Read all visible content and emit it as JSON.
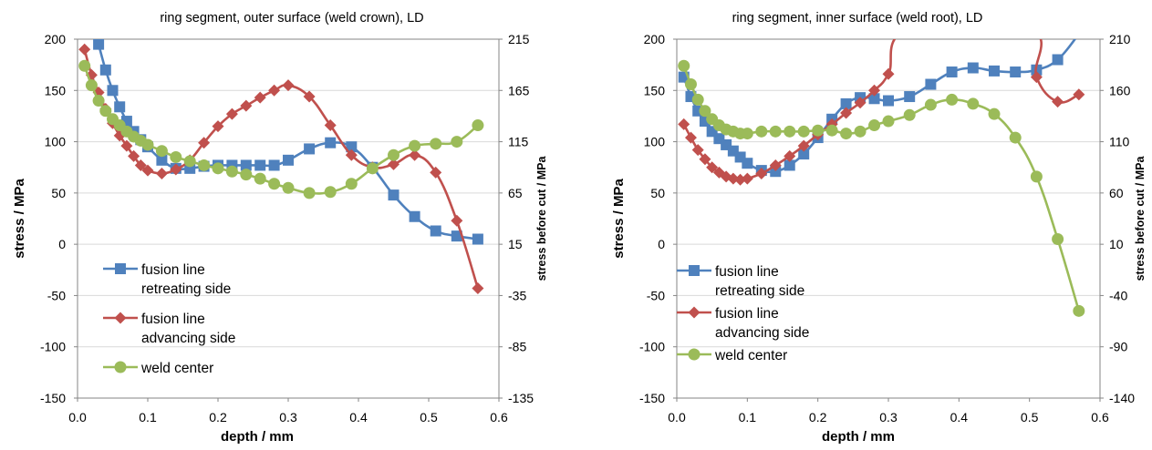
{
  "colors": {
    "retreating": "#4F81BD",
    "advancing": "#C0504D",
    "center": "#9BBB59",
    "grid": "#D9D9D9",
    "axis": "#868686"
  },
  "chart_data": [
    {
      "type": "line",
      "title": "ring segment, outer surface (weld crown), LD",
      "xlabel": "depth  / mm",
      "ylabel": "stress / MPa",
      "y2label": "stress before cut / MPa",
      "xlim": [
        0.0,
        0.6
      ],
      "ylim": [
        -150,
        200
      ],
      "y2lim": [
        -135,
        215
      ],
      "xticks": [
        "0.0",
        "0.1",
        "0.2",
        "0.3",
        "0.4",
        "0.5",
        "0.6"
      ],
      "yticks": [
        "200",
        "150",
        "100",
        "50",
        "0",
        "-50",
        "-100",
        "-150"
      ],
      "y2ticks": [
        "215",
        "165",
        "115",
        "65",
        "15",
        "-35",
        "-85",
        "-135"
      ],
      "grid": "horizontal",
      "legend_position": "bottom-left",
      "series": [
        {
          "name": "fusion line retreating side",
          "legend_lines": [
            "fusion line",
            "retreating side"
          ],
          "marker": "square",
          "points": [
            [
              0.03,
              195
            ],
            [
              0.04,
              170
            ],
            [
              0.05,
              150
            ],
            [
              0.06,
              134
            ],
            [
              0.07,
              120
            ],
            [
              0.08,
              110
            ],
            [
              0.09,
              102
            ],
            [
              0.1,
              95
            ],
            [
              0.12,
              82
            ],
            [
              0.14,
              74
            ],
            [
              0.16,
              74
            ],
            [
              0.18,
              76
            ],
            [
              0.2,
              77
            ],
            [
              0.22,
              77
            ],
            [
              0.24,
              77
            ],
            [
              0.26,
              77
            ],
            [
              0.28,
              77
            ],
            [
              0.3,
              82
            ],
            [
              0.33,
              93
            ],
            [
              0.36,
              99
            ],
            [
              0.39,
              95
            ],
            [
              0.42,
              75
            ],
            [
              0.45,
              48
            ],
            [
              0.48,
              27
            ],
            [
              0.51,
              13
            ],
            [
              0.54,
              8
            ],
            [
              0.57,
              5
            ]
          ]
        },
        {
          "name": "fusion line advancing side",
          "legend_lines": [
            "fusion line",
            "advancing side"
          ],
          "marker": "diamond",
          "points": [
            [
              0.01,
              190
            ],
            [
              0.02,
              165
            ],
            [
              0.03,
              148
            ],
            [
              0.04,
              132
            ],
            [
              0.05,
              118
            ],
            [
              0.06,
              106
            ],
            [
              0.07,
              96
            ],
            [
              0.08,
              86
            ],
            [
              0.09,
              77
            ],
            [
              0.1,
              72
            ],
            [
              0.12,
              69
            ],
            [
              0.14,
              73
            ],
            [
              0.16,
              82
            ],
            [
              0.18,
              99
            ],
            [
              0.2,
              115
            ],
            [
              0.22,
              127
            ],
            [
              0.24,
              135
            ],
            [
              0.26,
              143
            ],
            [
              0.28,
              150
            ],
            [
              0.3,
              155
            ],
            [
              0.33,
              144
            ],
            [
              0.36,
              116
            ],
            [
              0.39,
              87
            ],
            [
              0.42,
              75
            ],
            [
              0.45,
              78
            ],
            [
              0.48,
              87
            ],
            [
              0.51,
              70
            ],
            [
              0.54,
              23
            ],
            [
              0.57,
              -43
            ]
          ]
        },
        {
          "name": "weld center",
          "legend_lines": [
            "weld center"
          ],
          "marker": "circle",
          "points": [
            [
              0.01,
              174
            ],
            [
              0.02,
              155
            ],
            [
              0.03,
              140
            ],
            [
              0.04,
              130
            ],
            [
              0.05,
              122
            ],
            [
              0.06,
              116
            ],
            [
              0.07,
              110
            ],
            [
              0.08,
              105
            ],
            [
              0.09,
              101
            ],
            [
              0.1,
              97
            ],
            [
              0.12,
              91
            ],
            [
              0.14,
              85
            ],
            [
              0.16,
              81
            ],
            [
              0.18,
              77
            ],
            [
              0.2,
              74
            ],
            [
              0.22,
              71
            ],
            [
              0.24,
              68
            ],
            [
              0.26,
              64
            ],
            [
              0.28,
              59
            ],
            [
              0.3,
              55
            ],
            [
              0.33,
              50
            ],
            [
              0.36,
              51
            ],
            [
              0.39,
              59
            ],
            [
              0.42,
              74
            ],
            [
              0.45,
              87
            ],
            [
              0.48,
              96
            ],
            [
              0.51,
              98
            ],
            [
              0.54,
              100
            ],
            [
              0.57,
              116
            ]
          ]
        }
      ]
    },
    {
      "type": "line",
      "title": "ring segment, inner surface (weld  root), LD",
      "xlabel": "depth  / mm",
      "ylabel": "stress / MPa",
      "y2label": "stress before cut / MPa",
      "xlim": [
        0.0,
        0.6
      ],
      "ylim": [
        -150,
        200
      ],
      "y2lim": [
        -140,
        210
      ],
      "xticks": [
        "0.0",
        "0.1",
        "0.2",
        "0.3",
        "0.4",
        "0.5",
        "0.6"
      ],
      "yticks": [
        "200",
        "150",
        "100",
        "50",
        "0",
        "-50",
        "-100",
        "-150"
      ],
      "y2ticks": [
        "210",
        "160",
        "110",
        "60",
        "10",
        "-40",
        "-90",
        "-140"
      ],
      "grid": "horizontal",
      "legend_position": "bottom-left",
      "series": [
        {
          "name": "fusion line retreating side",
          "legend_lines": [
            "fusion line",
            "retreating side"
          ],
          "marker": "square",
          "points": [
            [
              0.01,
              163
            ],
            [
              0.02,
              144
            ],
            [
              0.03,
              130
            ],
            [
              0.04,
              120
            ],
            [
              0.05,
              110
            ],
            [
              0.06,
              103
            ],
            [
              0.07,
              97
            ],
            [
              0.08,
              91
            ],
            [
              0.09,
              85
            ],
            [
              0.1,
              79
            ],
            [
              0.12,
              72
            ],
            [
              0.14,
              71
            ],
            [
              0.16,
              77
            ],
            [
              0.18,
              88
            ],
            [
              0.2,
              104
            ],
            [
              0.22,
              122
            ],
            [
              0.24,
              137
            ],
            [
              0.26,
              143
            ],
            [
              0.28,
              142
            ],
            [
              0.3,
              140
            ],
            [
              0.33,
              144
            ],
            [
              0.36,
              156
            ],
            [
              0.39,
              168
            ],
            [
              0.42,
              172
            ],
            [
              0.45,
              169
            ],
            [
              0.48,
              168
            ],
            [
              0.51,
              170
            ],
            [
              0.54,
              180
            ],
            [
              0.57,
              205
            ]
          ]
        },
        {
          "name": "fusion line advancing side",
          "legend_lines": [
            "fusion line",
            "advancing side"
          ],
          "marker": "diamond",
          "points": [
            [
              0.01,
              117
            ],
            [
              0.02,
              104
            ],
            [
              0.03,
              92
            ],
            [
              0.04,
              83
            ],
            [
              0.05,
              75
            ],
            [
              0.06,
              70
            ],
            [
              0.07,
              66
            ],
            [
              0.08,
              64
            ],
            [
              0.09,
              63
            ],
            [
              0.1,
              64
            ],
            [
              0.12,
              69
            ],
            [
              0.14,
              77
            ],
            [
              0.16,
              86
            ],
            [
              0.18,
              96
            ],
            [
              0.2,
              107
            ],
            [
              0.22,
              117
            ],
            [
              0.24,
              128
            ],
            [
              0.26,
              138
            ],
            [
              0.28,
              150
            ],
            [
              0.3,
              166
            ],
            [
              0.33,
              210
            ],
            [
              0.5,
              210
            ],
            [
              0.51,
              163
            ],
            [
              0.54,
              139
            ],
            [
              0.57,
              146
            ]
          ]
        },
        {
          "name": "weld center",
          "legend_lines": [
            "weld center"
          ],
          "marker": "circle",
          "points": [
            [
              0.01,
              174
            ],
            [
              0.02,
              156
            ],
            [
              0.03,
              141
            ],
            [
              0.04,
              130
            ],
            [
              0.05,
              122
            ],
            [
              0.06,
              116
            ],
            [
              0.07,
              112
            ],
            [
              0.08,
              110
            ],
            [
              0.09,
              108
            ],
            [
              0.1,
              108
            ],
            [
              0.12,
              110
            ],
            [
              0.14,
              110
            ],
            [
              0.16,
              110
            ],
            [
              0.18,
              110
            ],
            [
              0.2,
              111
            ],
            [
              0.22,
              111
            ],
            [
              0.24,
              108
            ],
            [
              0.26,
              110
            ],
            [
              0.28,
              116
            ],
            [
              0.3,
              120
            ],
            [
              0.33,
              126
            ],
            [
              0.36,
              136
            ],
            [
              0.39,
              141
            ],
            [
              0.42,
              137
            ],
            [
              0.45,
              127
            ],
            [
              0.48,
              104
            ],
            [
              0.51,
              66
            ],
            [
              0.54,
              5
            ],
            [
              0.57,
              -65
            ]
          ]
        }
      ]
    }
  ]
}
